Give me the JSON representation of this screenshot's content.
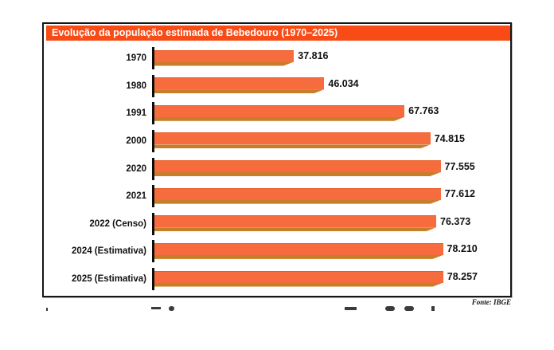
{
  "chart_data": {
    "type": "bar",
    "orientation": "horizontal",
    "title": "Evolução da população estimada de Bebedouro (1970–2025)",
    "source": "Fonte: IBGE",
    "categories": [
      "1970",
      "1980",
      "1991",
      "2000",
      "2020",
      "2021",
      "2022 (Censo)",
      "2024 (Estimativa)",
      "2025 (Estimativa)"
    ],
    "values": [
      37816,
      46034,
      67763,
      74815,
      77555,
      77612,
      76373,
      78210,
      78257
    ],
    "value_labels": [
      "37.816",
      "46.034",
      "67.763",
      "74.815",
      "77.555",
      "77.612",
      "76.373",
      "78.210",
      "78.257"
    ],
    "xlim": [
      0,
      96000
    ],
    "grid": false,
    "legend": false,
    "colors": {
      "title_bg": "#F94B16",
      "title_text": "#FFFFFF",
      "bar": "#F76C3E",
      "bar_edge": "#E85C22",
      "bar_shadow": "#C87E29",
      "text": "#111111",
      "border": "#161616"
    }
  }
}
